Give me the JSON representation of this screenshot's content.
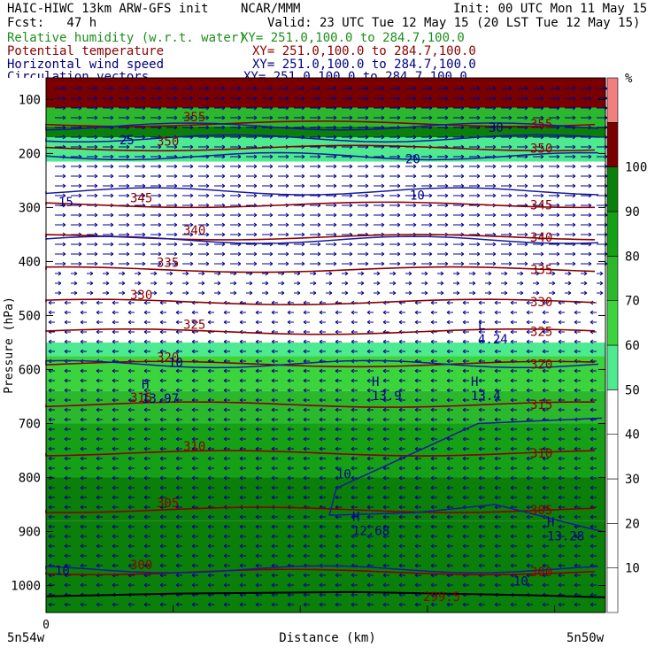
{
  "header": {
    "line1_left": "HAIC-HIWC 13km ARW-GFS init",
    "line1_mid": "NCAR/MMM",
    "line1_right": "Init: 00 UTC Mon 11 May 15",
    "fcst": "Fcst:   47 h",
    "valid": "Valid: 23 UTC Tue 12 May 15 (20 LST Tue 12 May 15)",
    "fields": [
      {
        "name": "Relative humidity (w.r.t. water)",
        "xy": "XY= 251.0,100.0 to 284.7,100.0",
        "color": "#1a8f1a"
      },
      {
        "name": "Potential temperature",
        "xy": "XY= 251.0,100.0 to 284.7,100.0",
        "color": "#8b0000"
      },
      {
        "name": "Horizontal wind speed",
        "xy": "XY= 251.0,100.0 to 284.7,100.0",
        "color": "#00007f"
      },
      {
        "name": "Circulation vectors",
        "xy": "XY= 251.0,100.0 to 284.7,100.0",
        "color": "#00007f"
      }
    ]
  },
  "chart_data": {
    "type": "heatmap",
    "ylabel": "Pressure (hPa)",
    "xlabel": "Distance (km)",
    "x_origin_label": "0",
    "x_left_label": "5n54w",
    "x_right_label": "5n50w",
    "yticks": [
      100,
      200,
      300,
      400,
      500,
      600,
      700,
      800,
      900,
      1000
    ],
    "ylim": [
      1050,
      60
    ],
    "colorbar": {
      "unit": "%",
      "levels": [
        10,
        20,
        30,
        40,
        50,
        60,
        70,
        80,
        90,
        100
      ],
      "colors": [
        "#ffffff",
        "#ffffff",
        "#ffffff",
        "#ffffff",
        "#ffffff",
        "#4dea8f",
        "#3cd43c",
        "#2cb82c",
        "#15a015",
        "#0a7f0a",
        "#7a0000",
        "#f08080"
      ]
    },
    "theta_contours": [
      {
        "value": 300,
        "p": 975
      },
      {
        "value": 305,
        "p": 860
      },
      {
        "value": 310,
        "p": 755
      },
      {
        "value": 315,
        "p": 665
      },
      {
        "value": 320,
        "p": 590
      },
      {
        "value": 325,
        "p": 530
      },
      {
        "value": 330,
        "p": 475
      },
      {
        "value": 335,
        "p": 415
      },
      {
        "value": 340,
        "p": 355
      },
      {
        "value": 345,
        "p": 295
      },
      {
        "value": 350,
        "p": 190
      },
      {
        "value": 355,
        "p": 145
      }
    ],
    "rh_bands": [
      {
        "p_top": 1050,
        "p_bot": 880,
        "rh": 95
      },
      {
        "p_top": 880,
        "p_bot": 800,
        "rh": 90
      },
      {
        "p_top": 800,
        "p_bot": 700,
        "rh": 82
      },
      {
        "p_top": 700,
        "p_bot": 640,
        "rh": 75
      },
      {
        "p_top": 640,
        "p_bot": 575,
        "rh": 65
      },
      {
        "p_top": 575,
        "p_bot": 550,
        "rh": 55
      },
      {
        "p_top": 550,
        "p_bot": 215,
        "rh": 5
      },
      {
        "p_top": 215,
        "p_bot": 170,
        "rh": 55
      },
      {
        "p_top": 170,
        "p_bot": 150,
        "rh": 92
      },
      {
        "p_top": 150,
        "p_bot": 115,
        "rh": 75
      },
      {
        "p_top": 115,
        "p_bot": 60,
        "rh": 101
      }
    ],
    "wind_contour_labels": [
      "10",
      "10",
      "10",
      "15",
      "20",
      "25",
      "30",
      "10",
      "10"
    ],
    "extrema_labels": [
      {
        "kind": "H",
        "value": "13.97"
      },
      {
        "kind": "H",
        "value": "13.9"
      },
      {
        "kind": "H",
        "value": "13.4"
      },
      {
        "kind": "L",
        "value": "4.24"
      },
      {
        "kind": "H",
        "value": "12.68"
      },
      {
        "kind": "H",
        "value": "13.28"
      },
      {
        "kind": "",
        "value": "299.5"
      }
    ]
  }
}
